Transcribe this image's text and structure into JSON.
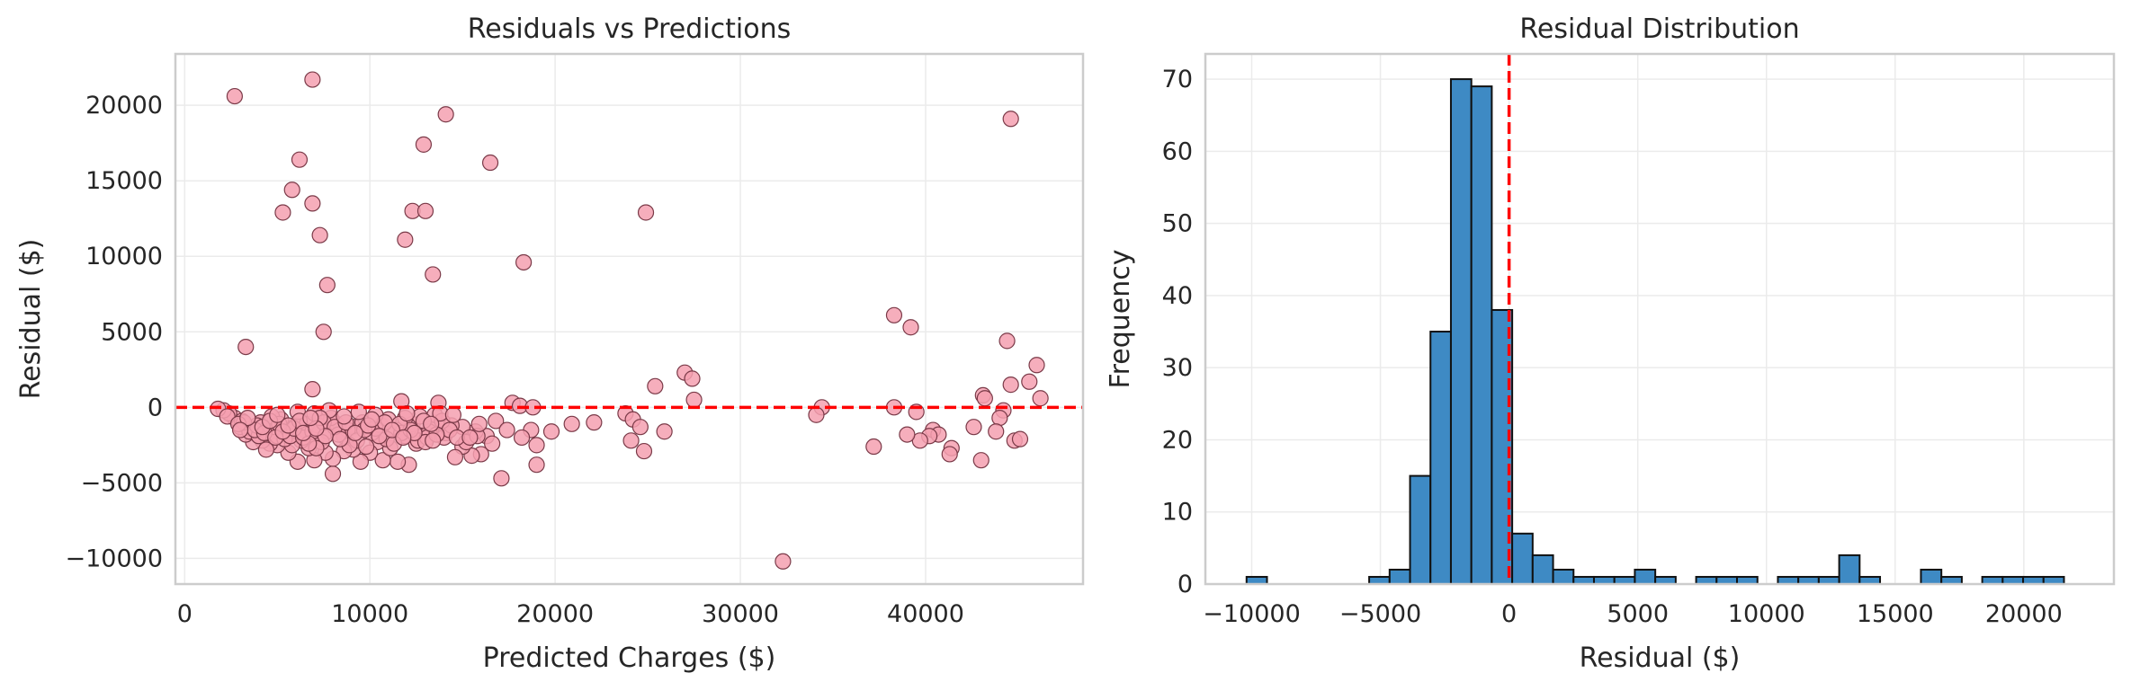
{
  "chart_data": [
    {
      "type": "scatter",
      "title": "Residuals vs Predictions",
      "xlabel": "Predicted Charges ($)",
      "ylabel": "Residual ($)",
      "xlim": [
        -500,
        48500
      ],
      "ylim": [
        -11700,
        23400
      ],
      "xticks": [
        0,
        10000,
        20000,
        30000,
        40000
      ],
      "xtick_labels": [
        "0",
        "10000",
        "20000",
        "30000",
        "40000"
      ],
      "yticks": [
        -10000,
        -5000,
        0,
        5000,
        10000,
        15000,
        20000
      ],
      "ytick_labels": [
        "−10000",
        "−5000",
        "0",
        "5000",
        "10000",
        "15000",
        "20000"
      ],
      "grid": true,
      "reference_line": {
        "y": 0,
        "color": "#ff0000",
        "style": "dashed"
      },
      "marker_color": "#f4a0b0",
      "marker_edge": "#7a3a48",
      "points": [
        [
          2700,
          20600
        ],
        [
          6900,
          21700
        ],
        [
          14100,
          19400
        ],
        [
          6200,
          16400
        ],
        [
          12900,
          17400
        ],
        [
          16500,
          16200
        ],
        [
          5800,
          14400
        ],
        [
          5300,
          12900
        ],
        [
          6900,
          13500
        ],
        [
          12300,
          13000
        ],
        [
          13000,
          13000
        ],
        [
          24900,
          12900
        ],
        [
          7300,
          11400
        ],
        [
          11900,
          11100
        ],
        [
          18300,
          9600
        ],
        [
          13400,
          8800
        ],
        [
          7700,
          8100
        ],
        [
          7500,
          5000
        ],
        [
          3300,
          4000
        ],
        [
          6900,
          1200
        ],
        [
          44600,
          19100
        ],
        [
          38300,
          6100
        ],
        [
          39200,
          5300
        ],
        [
          44400,
          4400
        ],
        [
          46000,
          2800
        ],
        [
          27000,
          2300
        ],
        [
          27400,
          1900
        ],
        [
          45600,
          1700
        ],
        [
          44600,
          1500
        ],
        [
          25400,
          1400
        ],
        [
          27500,
          500
        ],
        [
          43100,
          800
        ],
        [
          43200,
          600
        ],
        [
          46200,
          600
        ],
        [
          34400,
          0
        ],
        [
          38300,
          0
        ],
        [
          11700,
          400
        ],
        [
          13700,
          300
        ],
        [
          17700,
          300
        ],
        [
          18100,
          100
        ],
        [
          18800,
          0
        ],
        [
          39500,
          -300
        ],
        [
          34100,
          -500
        ],
        [
          23800,
          -400
        ],
        [
          24200,
          -800
        ],
        [
          24600,
          -1300
        ],
        [
          44200,
          -200
        ],
        [
          44000,
          -700
        ],
        [
          22100,
          -1000
        ],
        [
          20900,
          -1100
        ],
        [
          19800,
          -1600
        ],
        [
          18700,
          -1500
        ],
        [
          25900,
          -1600
        ],
        [
          40400,
          -1500
        ],
        [
          40700,
          -1800
        ],
        [
          40200,
          -1900
        ],
        [
          39700,
          -2200
        ],
        [
          39000,
          -1800
        ],
        [
          42600,
          -1300
        ],
        [
          43800,
          -1600
        ],
        [
          44800,
          -2200
        ],
        [
          45100,
          -2100
        ],
        [
          41400,
          -2700
        ],
        [
          41300,
          -3100
        ],
        [
          37200,
          -2600
        ],
        [
          24100,
          -2200
        ],
        [
          24800,
          -2900
        ],
        [
          19000,
          -2500
        ],
        [
          19000,
          -3800
        ],
        [
          17100,
          -4700
        ],
        [
          16000,
          -3100
        ],
        [
          15500,
          -3200
        ],
        [
          15000,
          -2600
        ],
        [
          14600,
          -3300
        ],
        [
          16300,
          -1900
        ],
        [
          15700,
          -1600
        ],
        [
          15000,
          -1300
        ],
        [
          14100,
          -1700
        ],
        [
          13600,
          -1000
        ],
        [
          13300,
          -1400
        ],
        [
          12800,
          -1900
        ],
        [
          12500,
          -2400
        ],
        [
          12100,
          -3800
        ],
        [
          11500,
          -3600
        ],
        [
          10700,
          -3500
        ],
        [
          11100,
          -2700
        ],
        [
          10400,
          -2300
        ],
        [
          10000,
          -3000
        ],
        [
          9500,
          -3600
        ],
        [
          9100,
          -2800
        ],
        [
          8600,
          -2900
        ],
        [
          8000,
          -4400
        ],
        [
          8000,
          -3400
        ],
        [
          7600,
          -3000
        ],
        [
          7000,
          -3500
        ],
        [
          6700,
          -2700
        ],
        [
          6100,
          -3600
        ],
        [
          5600,
          -3000
        ],
        [
          5000,
          -2500
        ],
        [
          4600,
          -2400
        ],
        [
          4200,
          -2200
        ],
        [
          3700,
          -2300
        ],
        [
          3300,
          -1800
        ],
        [
          3000,
          -1300
        ],
        [
          2700,
          -700
        ],
        [
          2400,
          -400
        ],
        [
          2100,
          -200
        ],
        [
          1800,
          -100
        ],
        [
          2300,
          -600
        ],
        [
          3100,
          -900
        ],
        [
          3600,
          -1400
        ],
        [
          4100,
          -1000
        ],
        [
          4500,
          -1700
        ],
        [
          5000,
          -1900
        ],
        [
          5500,
          -1500
        ],
        [
          6000,
          -1200
        ],
        [
          6300,
          -2200
        ],
        [
          6800,
          -1800
        ],
        [
          7200,
          -1200
        ],
        [
          7700,
          -1600
        ],
        [
          8200,
          -1100
        ],
        [
          8600,
          -1900
        ],
        [
          9100,
          -1300
        ],
        [
          9600,
          -1000
        ],
        [
          10100,
          -1700
        ],
        [
          10600,
          -1200
        ],
        [
          11000,
          -800
        ],
        [
          11400,
          -1500
        ],
        [
          11900,
          -1900
        ],
        [
          12300,
          -1100
        ],
        [
          12700,
          -600
        ],
        [
          13200,
          -1600
        ],
        [
          13500,
          -500
        ],
        [
          14000,
          -2000
        ],
        [
          14400,
          -1200
        ],
        [
          15200,
          -2300
        ],
        [
          15800,
          -1900
        ],
        [
          16800,
          -900
        ],
        [
          17400,
          -1500
        ],
        [
          18200,
          -2000
        ],
        [
          3500,
          -1600
        ],
        [
          4000,
          -1900
        ],
        [
          4800,
          -1300
        ],
        [
          5200,
          -800
        ],
        [
          5800,
          -2500
        ],
        [
          6500,
          -1500
        ],
        [
          7400,
          -2300
        ],
        [
          7900,
          -700
        ],
        [
          8800,
          -1500
        ],
        [
          9300,
          -2200
        ],
        [
          9800,
          -2600
        ],
        [
          10300,
          -1400
        ],
        [
          10900,
          -2100
        ],
        [
          11700,
          -1700
        ],
        [
          12600,
          -2200
        ],
        [
          13100,
          -2000
        ],
        [
          13900,
          -900
        ],
        [
          4400,
          -2800
        ],
        [
          5400,
          -2100
        ],
        [
          6600,
          -1100
        ],
        [
          7100,
          -2700
        ],
        [
          3900,
          -1200
        ],
        [
          4700,
          -600
        ],
        [
          6100,
          -300
        ],
        [
          7000,
          -400
        ],
        [
          7800,
          -200
        ],
        [
          9400,
          -300
        ],
        [
          10300,
          -500
        ],
        [
          11900,
          -700
        ],
        [
          13800,
          -400
        ],
        [
          3200,
          -1000
        ],
        [
          3800,
          -1500
        ],
        [
          4300,
          -1700
        ],
        [
          5100,
          -1100
        ],
        [
          5700,
          -1900
        ],
        [
          6400,
          -2000
        ],
        [
          6900,
          -1600
        ],
        [
          7500,
          -1000
        ],
        [
          8300,
          -1800
        ],
        [
          8900,
          -2500
        ],
        [
          9700,
          -1500
        ],
        [
          10800,
          -1000
        ],
        [
          11300,
          -2400
        ],
        [
          12200,
          -1500
        ],
        [
          13000,
          -2300
        ],
        [
          14300,
          -1500
        ],
        [
          2900,
          -1100
        ],
        [
          3400,
          -700
        ],
        [
          4900,
          -2000
        ],
        [
          5900,
          -1400
        ],
        [
          6700,
          -2400
        ],
        [
          7300,
          -700
        ],
        [
          8100,
          -1300
        ],
        [
          10500,
          -1900
        ],
        [
          11600,
          -1100
        ],
        [
          12900,
          -900
        ],
        [
          13600,
          -1800
        ],
        [
          14700,
          -2000
        ],
        [
          15900,
          -1100
        ],
        [
          3000,
          -1500
        ],
        [
          4200,
          -1300
        ],
        [
          5300,
          -1600
        ],
        [
          6200,
          -900
        ],
        [
          7600,
          -1900
        ],
        [
          8700,
          -1000
        ],
        [
          9900,
          -1200
        ],
        [
          11200,
          -1500
        ],
        [
          12400,
          -1700
        ],
        [
          13300,
          -1100
        ],
        [
          14500,
          -500
        ],
        [
          15400,
          -2000
        ],
        [
          4600,
          -900
        ],
        [
          5600,
          -1200
        ],
        [
          6400,
          -1700
        ],
        [
          7100,
          -1400
        ],
        [
          8400,
          -2100
        ],
        [
          9200,
          -1700
        ],
        [
          10100,
          -800
        ],
        [
          11800,
          -2000
        ],
        [
          13400,
          -2200
        ],
        [
          16600,
          -2400
        ],
        [
          5000,
          -500
        ],
        [
          6800,
          -700
        ],
        [
          8600,
          -600
        ],
        [
          12000,
          -400
        ],
        [
          43000,
          -3500
        ],
        [
          32300,
          -10200
        ]
      ]
    },
    {
      "type": "bar",
      "subtype": "histogram",
      "title": "Residual Distribution",
      "xlabel": "Residual ($)",
      "ylabel": "Frequency",
      "xlim": [
        -11800,
        23500
      ],
      "ylim": [
        0,
        73.5
      ],
      "xticks": [
        -10000,
        -5000,
        0,
        5000,
        10000,
        15000,
        20000
      ],
      "xtick_labels": [
        "−10000",
        "−5000",
        "0",
        "5000",
        "10000",
        "15000",
        "20000"
      ],
      "yticks": [
        0,
        10,
        20,
        30,
        40,
        50,
        60,
        70
      ],
      "ytick_labels": [
        "0",
        "10",
        "20",
        "30",
        "40",
        "50",
        "60",
        "70"
      ],
      "grid": true,
      "reference_line": {
        "x": 0,
        "color": "#ff0000",
        "style": "dashed"
      },
      "bar_color": "#3e8ac4",
      "bar_edge": "#111111",
      "bin_start": -10200,
      "bin_width": 794,
      "values": [
        1,
        0,
        0,
        0,
        0,
        0,
        1,
        2,
        15,
        35,
        70,
        69,
        38,
        7,
        4,
        2,
        1,
        1,
        1,
        2,
        1,
        0,
        1,
        1,
        1,
        0,
        1,
        1,
        1,
        4,
        1,
        0,
        0,
        2,
        1,
        0,
        1,
        1,
        1,
        1
      ]
    }
  ]
}
